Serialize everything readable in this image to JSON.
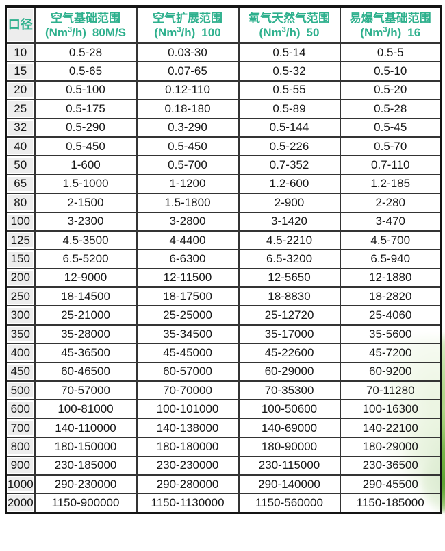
{
  "theme": {
    "header_text_color": "#2eb08d",
    "body_text_color": "#171717",
    "grid_line_color": "#343434",
    "first_column_bg": "#ededed",
    "leaf_green": "#68aa38"
  },
  "table": {
    "diameter_header": "口径",
    "columns": [
      {
        "title": "空气基础范围",
        "unit_open": "(Nm",
        "unit_sup": "3",
        "unit_close": "/h)",
        "rate": "80M/S"
      },
      {
        "title": "空气扩展范围",
        "unit_open": "(Nm",
        "unit_sup": "3",
        "unit_close": "/h)",
        "rate": "100"
      },
      {
        "title": "氧气天然气范围",
        "unit_open": "(Nm",
        "unit_sup": "3",
        "unit_close": "/h)",
        "rate": "50"
      },
      {
        "title": "易爆气基础范围",
        "unit_open": "(Nm",
        "unit_sup": "3",
        "unit_close": "/h)",
        "rate": "16"
      }
    ],
    "rows": [
      {
        "diameter": "10",
        "ranges": [
          "0.5-28",
          "0.03-30",
          "0.5-14",
          "0.5-5"
        ]
      },
      {
        "diameter": "15",
        "ranges": [
          "0.5-65",
          "0.07-65",
          "0.5-32",
          "0.5-10"
        ]
      },
      {
        "diameter": "20",
        "ranges": [
          "0.5-100",
          "0.12-110",
          "0.5-55",
          "0.5-20"
        ]
      },
      {
        "diameter": "25",
        "ranges": [
          "0.5-175",
          "0.18-180",
          "0.5-89",
          "0.5-28"
        ]
      },
      {
        "diameter": "32",
        "ranges": [
          "0.5-290",
          "0.3-290",
          "0.5-144",
          "0.5-45"
        ]
      },
      {
        "diameter": "40",
        "ranges": [
          "0.5-450",
          "0.5-450",
          "0.5-226",
          "0.5-70"
        ]
      },
      {
        "diameter": "50",
        "ranges": [
          "1-600",
          "0.5-700",
          "0.7-352",
          "0.7-110"
        ]
      },
      {
        "diameter": "65",
        "ranges": [
          "1.5-1000",
          "1-1200",
          "1.2-600",
          "1.2-185"
        ]
      },
      {
        "diameter": "80",
        "ranges": [
          "2-1500",
          "1.5-1800",
          "2-900",
          "2-280"
        ]
      },
      {
        "diameter": "100",
        "ranges": [
          "3-2300",
          "3-2800",
          "3-1420",
          "3-470"
        ]
      },
      {
        "diameter": "125",
        "ranges": [
          "4.5-3500",
          "4-4400",
          "4.5-2210",
          "4.5-700"
        ]
      },
      {
        "diameter": "150",
        "ranges": [
          "6.5-5200",
          "6-6300",
          "6.5-3200",
          "6.5-940"
        ]
      },
      {
        "diameter": "200",
        "ranges": [
          "12-9000",
          "12-11500",
          "12-5650",
          "12-1880"
        ]
      },
      {
        "diameter": "250",
        "ranges": [
          "18-14500",
          "18-17500",
          "18-8830",
          "18-2820"
        ]
      },
      {
        "diameter": "300",
        "ranges": [
          "25-21000",
          "25-25000",
          "25-12720",
          "25-4060"
        ]
      },
      {
        "diameter": "350",
        "ranges": [
          "35-28000",
          "35-34500",
          "35-17000",
          "35-5600"
        ]
      },
      {
        "diameter": "400",
        "ranges": [
          "45-36500",
          "45-45000",
          "45-22600",
          "45-7200"
        ]
      },
      {
        "diameter": "450",
        "ranges": [
          "60-46500",
          "60-57000",
          "60-29000",
          "60-9200"
        ]
      },
      {
        "diameter": "500",
        "ranges": [
          "70-57000",
          "70-70000",
          "70-35300",
          "70-11280"
        ]
      },
      {
        "diameter": "600",
        "ranges": [
          "100-81000",
          "100-101000",
          "100-50600",
          "100-16300"
        ]
      },
      {
        "diameter": "700",
        "ranges": [
          "140-110000",
          "140-138000",
          "140-69000",
          "140-22100"
        ]
      },
      {
        "diameter": "800",
        "ranges": [
          "180-150000",
          "180-180000",
          "180-90000",
          "180-29000"
        ]
      },
      {
        "diameter": "900",
        "ranges": [
          "230-185000",
          "230-230000",
          "230-115000",
          "230-36500"
        ]
      },
      {
        "diameter": "1000",
        "ranges": [
          "290-230000",
          "290-280000",
          "290-140000",
          "290-45500"
        ]
      },
      {
        "diameter": "2000",
        "ranges": [
          "1150-900000",
          "1150-1130000",
          "1150-560000",
          "1150-185000"
        ]
      }
    ]
  }
}
